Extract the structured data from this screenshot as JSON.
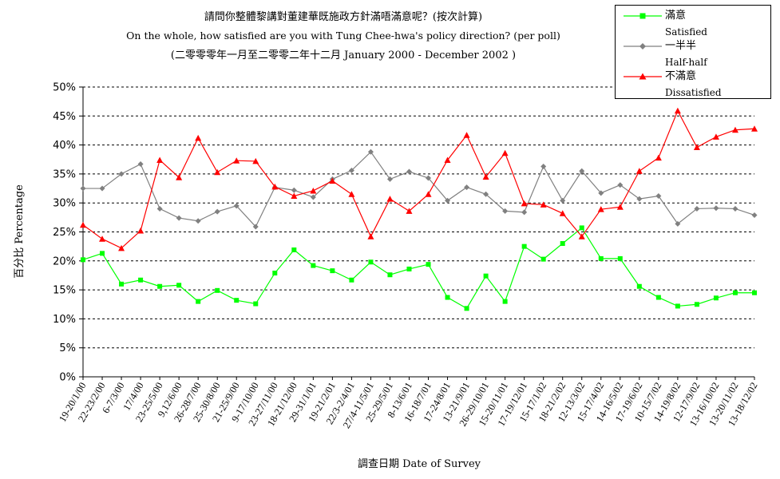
{
  "header": {
    "title_zh": "請問你整體黎講對董建華既施政方針滿唔滿意呢？(按次計算)",
    "title_en": "On the whole, how satisfied are you with Tung Chee-hwa's policy direction? (per poll)",
    "subtitle": "(二零零零年一月至二零零二年十二月 January 2000 - December 2002 )"
  },
  "legend": {
    "items": [
      {
        "zh": "滿意",
        "en": "Satisfied",
        "color": "#00ff00",
        "marker": "square"
      },
      {
        "zh": "一半半",
        "en": "Half-half",
        "color": "#808080",
        "marker": "diamond"
      },
      {
        "zh": "不滿意",
        "en": "Dissatisfied",
        "color": "#ff0000",
        "marker": "triangle"
      }
    ]
  },
  "chart_data": {
    "type": "line",
    "ylabel": "百分比 Percentage",
    "xlabel": "調查日期 Date of Survey",
    "ylim": [
      0,
      50
    ],
    "yticks": [
      "0%",
      "5%",
      "10%",
      "15%",
      "20%",
      "25%",
      "30%",
      "35%",
      "40%",
      "45%",
      "50%"
    ],
    "grid": "horizontal dashed",
    "legend_position": "top-right",
    "x_tick_labels": [
      "19-20/1/00",
      "22-23/2/00",
      "6-7/3/00",
      "17/4/00",
      "23-25/5/00",
      "9,12/6/00",
      "26-28/7/00",
      "25-30/8/00",
      "21-25/9/00",
      "9-17/10/00",
      "23-27/11/00",
      "18-21/12/00",
      "29-31/1/01",
      "19-21/2/01",
      "22/3-2/4/01",
      "27/4-11/5/01",
      "25-29/5/01",
      "8-13/6/01",
      "16-18/7/01",
      "17-24/8/01",
      "13-21/9/01",
      "26-29/10/01",
      "15-20/11/01",
      "17-19/12/01",
      "15-17/1/02",
      "18-21/2/02",
      "12-13/3/02",
      "15-17/4/02",
      "14-16/5/02",
      "17-19/6/02",
      "10-15/7/02",
      "14-19/8/02",
      "12-17/9/02",
      "13-16/10/02",
      "13-20/11/02",
      "13-18/12/02"
    ],
    "series": [
      {
        "name": "滿意 Satisfied",
        "color": "#00ff00",
        "marker": "square",
        "values": [
          20.2,
          21.3,
          16.0,
          16.7,
          15.6,
          15.8,
          13.0,
          14.9,
          13.2,
          12.6,
          17.9,
          21.9,
          19.2,
          18.3,
          16.7,
          19.8,
          17.6,
          18.6,
          19.4,
          13.7,
          11.8,
          17.4,
          13.0,
          22.5,
          20.3,
          23.0,
          25.7,
          20.4,
          20.4,
          15.6,
          13.7,
          12.2,
          12.5,
          13.6,
          14.5,
          14.5
        ]
      },
      {
        "name": "一半半 Half-half",
        "color": "#808080",
        "marker": "diamond",
        "values": [
          32.5,
          32.5,
          35.0,
          36.7,
          29.0,
          27.4,
          26.9,
          28.5,
          29.5,
          25.9,
          32.7,
          32.2,
          31.0,
          34.1,
          35.6,
          38.8,
          34.1,
          35.4,
          34.3,
          30.4,
          32.7,
          31.5,
          28.6,
          28.4,
          36.3,
          30.4,
          35.5,
          31.7,
          33.1,
          30.7,
          31.2,
          26.4,
          29.0,
          29.1,
          29.0,
          27.9
        ]
      },
      {
        "name": "不滿意 Dissatisfied",
        "color": "#ff0000",
        "marker": "triangle",
        "values": [
          26.2,
          23.8,
          22.2,
          25.2,
          37.4,
          34.4,
          41.2,
          35.3,
          37.3,
          37.2,
          32.8,
          31.2,
          32.1,
          33.8,
          31.5,
          24.2,
          30.7,
          28.6,
          31.5,
          37.4,
          41.7,
          34.5,
          38.6,
          29.9,
          29.7,
          28.2,
          24.2,
          28.9,
          29.3,
          35.5,
          37.8,
          45.9,
          39.6,
          41.4,
          42.6,
          42.8
        ]
      }
    ]
  }
}
